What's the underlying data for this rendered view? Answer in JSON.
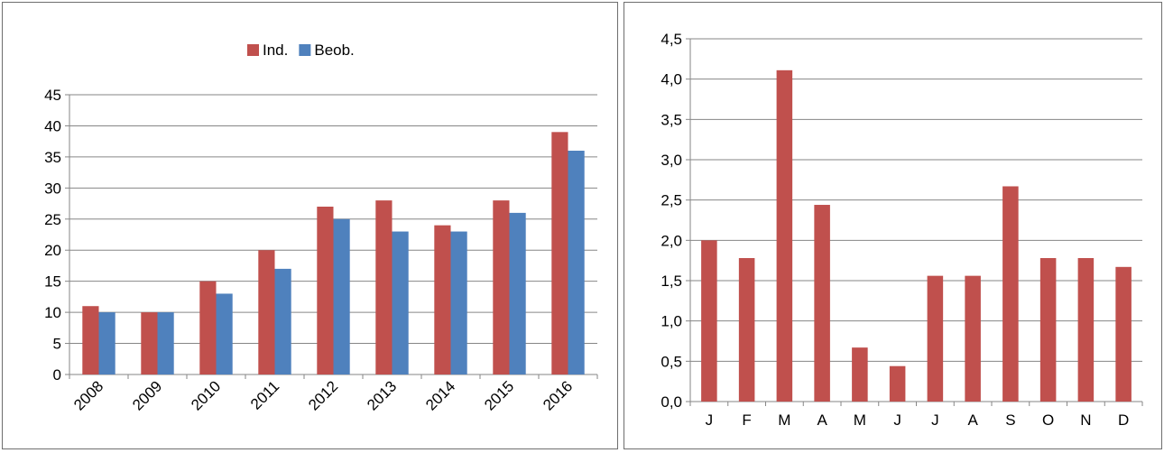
{
  "chart_data": [
    {
      "type": "bar",
      "categories": [
        "2008",
        "2009",
        "2010",
        "2011",
        "2012",
        "2013",
        "2014",
        "2015",
        "2016"
      ],
      "series": [
        {
          "name": "Ind.",
          "color": "#c0504d",
          "values": [
            11,
            10,
            15,
            20,
            27,
            28,
            24,
            28,
            39
          ]
        },
        {
          "name": "Beob.",
          "color": "#4f81bd",
          "values": [
            10,
            10,
            13,
            17,
            25,
            23,
            23,
            26,
            36
          ]
        }
      ],
      "yticks": [
        "0",
        "5",
        "10",
        "15",
        "20",
        "25",
        "30",
        "35",
        "40",
        "45"
      ],
      "ylim": [
        0,
        45
      ],
      "grid": true,
      "legend": "top-center"
    },
    {
      "type": "bar",
      "categories": [
        "J",
        "F",
        "M",
        "A",
        "M",
        "J",
        "J",
        "A",
        "S",
        "O",
        "N",
        "D"
      ],
      "series": [
        {
          "color": "#c0504d",
          "values": [
            2.0,
            1.78,
            4.11,
            2.44,
            0.67,
            0.44,
            1.56,
            1.56,
            2.67,
            1.78,
            1.78,
            1.67
          ]
        }
      ],
      "yticks": [
        "0,0",
        "0,5",
        "1,0",
        "1,5",
        "2,0",
        "2,5",
        "3,0",
        "3,5",
        "4,0",
        "4,5"
      ],
      "ylim": [
        0,
        4.5
      ],
      "grid": true,
      "legend": "none"
    }
  ]
}
